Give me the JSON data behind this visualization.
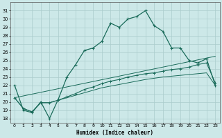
{
  "title": "",
  "xlabel": "Humidex (Indice chaleur)",
  "bg_color": "#cce8e8",
  "grid_color": "#aacccc",
  "line_color": "#1a6b5a",
  "xlim": [
    -0.5,
    23.5
  ],
  "ylim": [
    17.5,
    32.0
  ],
  "xticks": [
    0,
    1,
    2,
    3,
    4,
    5,
    6,
    7,
    8,
    9,
    10,
    11,
    12,
    13,
    14,
    15,
    16,
    17,
    18,
    19,
    20,
    21,
    22,
    23
  ],
  "yticks": [
    18,
    19,
    20,
    21,
    22,
    23,
    24,
    25,
    26,
    27,
    28,
    29,
    30,
    31
  ],
  "line1_x": [
    0,
    1,
    2,
    3,
    4,
    5,
    6,
    7,
    8,
    9,
    10,
    11,
    12,
    13,
    14,
    15,
    16,
    17,
    18,
    19,
    20,
    21,
    22,
    23
  ],
  "line1_y": [
    22.0,
    19.0,
    18.7,
    20.0,
    18.0,
    20.3,
    23.0,
    24.5,
    26.2,
    26.5,
    27.3,
    29.5,
    29.0,
    30.0,
    30.3,
    31.0,
    29.2,
    28.5,
    26.5,
    26.5,
    25.0,
    24.7,
    25.2,
    22.0
  ],
  "line2_x": [
    0,
    1,
    2,
    3,
    4,
    5,
    6,
    7,
    8,
    9,
    10,
    11,
    12,
    13,
    14,
    15,
    16,
    17,
    18,
    19,
    20,
    21,
    22,
    23
  ],
  "line2_y": [
    20.5,
    19.2,
    18.8,
    19.9,
    19.9,
    20.2,
    20.6,
    21.0,
    21.5,
    21.8,
    22.2,
    22.5,
    22.7,
    23.0,
    23.2,
    23.4,
    23.5,
    23.7,
    23.9,
    24.0,
    24.2,
    24.5,
    24.7,
    22.3
  ],
  "line3_x": [
    0,
    1,
    2,
    3,
    4,
    5,
    6,
    7,
    8,
    9,
    10,
    11,
    12,
    13,
    14,
    15,
    16,
    17,
    18,
    19,
    20,
    21,
    22,
    23
  ],
  "line3_y": [
    20.5,
    19.2,
    18.8,
    19.9,
    19.9,
    20.2,
    20.5,
    20.8,
    21.1,
    21.4,
    21.7,
    21.9,
    22.1,
    22.3,
    22.5,
    22.7,
    22.85,
    23.0,
    23.1,
    23.2,
    23.3,
    23.4,
    23.5,
    22.0
  ],
  "line4_x": [
    0,
    23
  ],
  "line4_y": [
    20.5,
    25.5
  ]
}
